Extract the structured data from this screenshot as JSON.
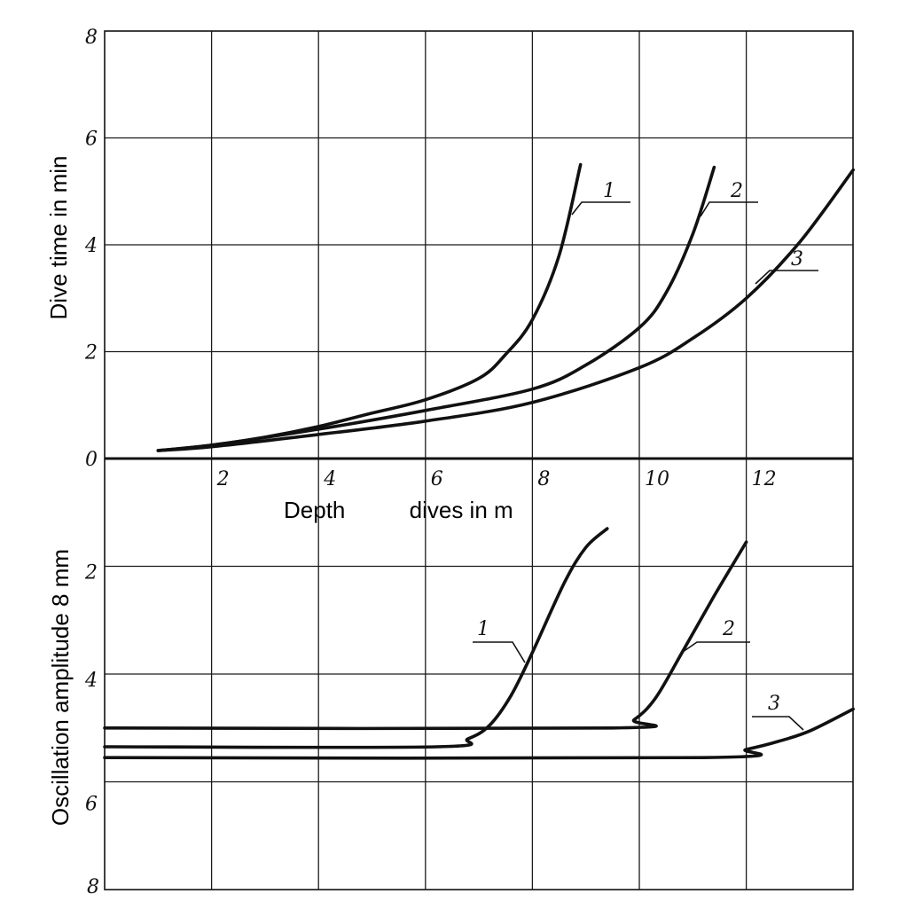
{
  "chart_data": [
    {
      "type": "line",
      "panel": "top",
      "ylabel": "Dive time in min",
      "xlabel": "Depth          dives in m",
      "xlim": [
        0,
        14
      ],
      "ylim": [
        0,
        8
      ],
      "grid": true,
      "x_ticks": [
        "2",
        "4",
        "6",
        "8",
        "10",
        "12"
      ],
      "y_ticks": [
        "0",
        "2",
        "4",
        "6",
        "8"
      ],
      "series": [
        {
          "name": "1",
          "x": [
            1,
            2,
            3,
            4,
            5,
            6,
            7,
            7.5,
            8,
            8.5,
            8.9
          ],
          "y": [
            0.15,
            0.25,
            0.4,
            0.6,
            0.85,
            1.1,
            1.5,
            1.95,
            2.6,
            3.8,
            5.5
          ]
        },
        {
          "name": "2",
          "x": [
            1,
            2,
            4,
            6,
            8,
            9,
            10,
            10.5,
            11,
            11.4
          ],
          "y": [
            0.15,
            0.25,
            0.55,
            0.9,
            1.3,
            1.75,
            2.45,
            3.1,
            4.2,
            5.45
          ]
        },
        {
          "name": "3",
          "x": [
            1,
            2,
            4,
            6,
            8,
            10,
            11,
            12,
            13,
            14
          ],
          "y": [
            0.15,
            0.22,
            0.45,
            0.7,
            1.05,
            1.7,
            2.25,
            3.0,
            4.05,
            5.4
          ]
        }
      ]
    },
    {
      "type": "line",
      "panel": "bottom",
      "ylabel": "Oscillation amplitude 8 mm",
      "xlim": [
        0,
        14
      ],
      "ylim": [
        0,
        8
      ],
      "y_inverted": true,
      "grid": true,
      "y_ticks": [
        "2",
        "4",
        "6",
        "8"
      ],
      "series": [
        {
          "name": "1",
          "x": [
            0,
            6.2,
            6.8,
            7.2,
            7.6,
            8.0,
            8.6,
            9.0,
            9.4
          ],
          "y": [
            5.35,
            5.35,
            5.2,
            4.95,
            4.4,
            3.6,
            2.3,
            1.65,
            1.3
          ]
        },
        {
          "name": "2",
          "x": [
            0,
            9.5,
            9.9,
            10.3,
            10.8,
            11.4,
            12.0
          ],
          "y": [
            5.0,
            5.0,
            4.85,
            4.45,
            3.6,
            2.55,
            1.55
          ]
        },
        {
          "name": "3",
          "x": [
            0,
            11.2,
            12.0,
            12.6,
            13.2,
            14.0
          ],
          "y": [
            5.55,
            5.55,
            5.4,
            5.25,
            5.05,
            4.65
          ]
        }
      ]
    }
  ]
}
